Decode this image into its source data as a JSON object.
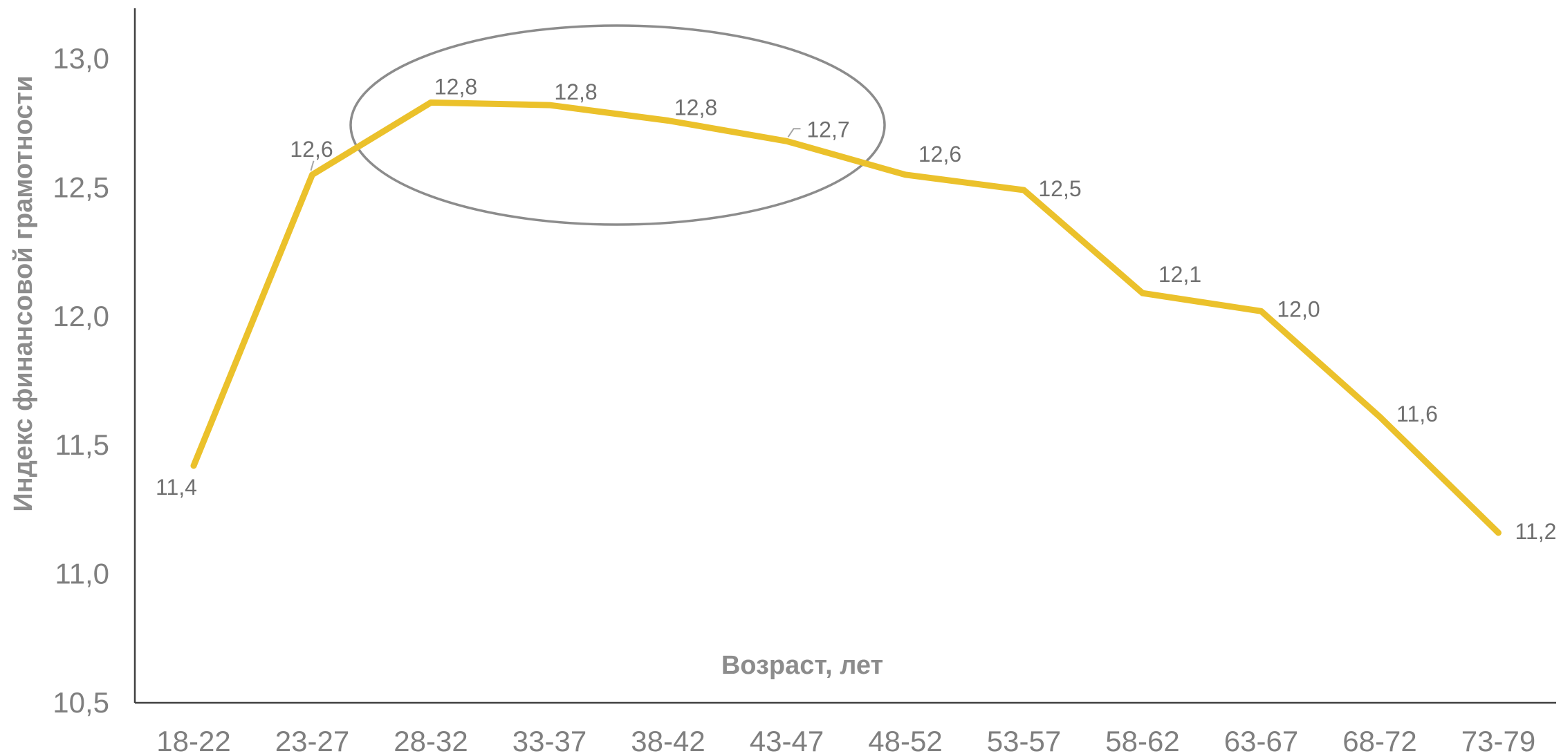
{
  "chart_data": {
    "type": "line",
    "title": "",
    "xlabel": "Возраст, лет",
    "ylabel": "Индекс финансовой грамотности",
    "categories": [
      "18-22",
      "23-27",
      "28-32",
      "33-37",
      "38-42",
      "43-47",
      "48-52",
      "53-57",
      "58-62",
      "63-67",
      "68-72",
      "73-79"
    ],
    "series": [
      {
        "values": [
          11.42,
          12.55,
          12.83,
          12.82,
          12.76,
          12.68,
          12.55,
          12.49,
          12.09,
          12.02,
          11.61,
          11.16
        ],
        "labels": [
          "11,4",
          "12,6",
          "12,8",
          "12,8",
          "12,8",
          "12,7",
          "12,6",
          "12,5",
          "12,1",
          "12,0",
          "11,6",
          "11,2"
        ]
      }
    ],
    "ylim": [
      10.5,
      13.0
    ],
    "yticks": [
      "10,5",
      "11,0",
      "11,5",
      "12,0",
      "12,5",
      "13,0"
    ],
    "grid": false,
    "legend": "none",
    "annotation": "ellipse highlighting 28-32 to 43-47",
    "colors": {
      "line": "#EBC12B",
      "axis": "#404040",
      "text": "#7f7f7f",
      "ellipse": "#8c8c8c"
    }
  }
}
